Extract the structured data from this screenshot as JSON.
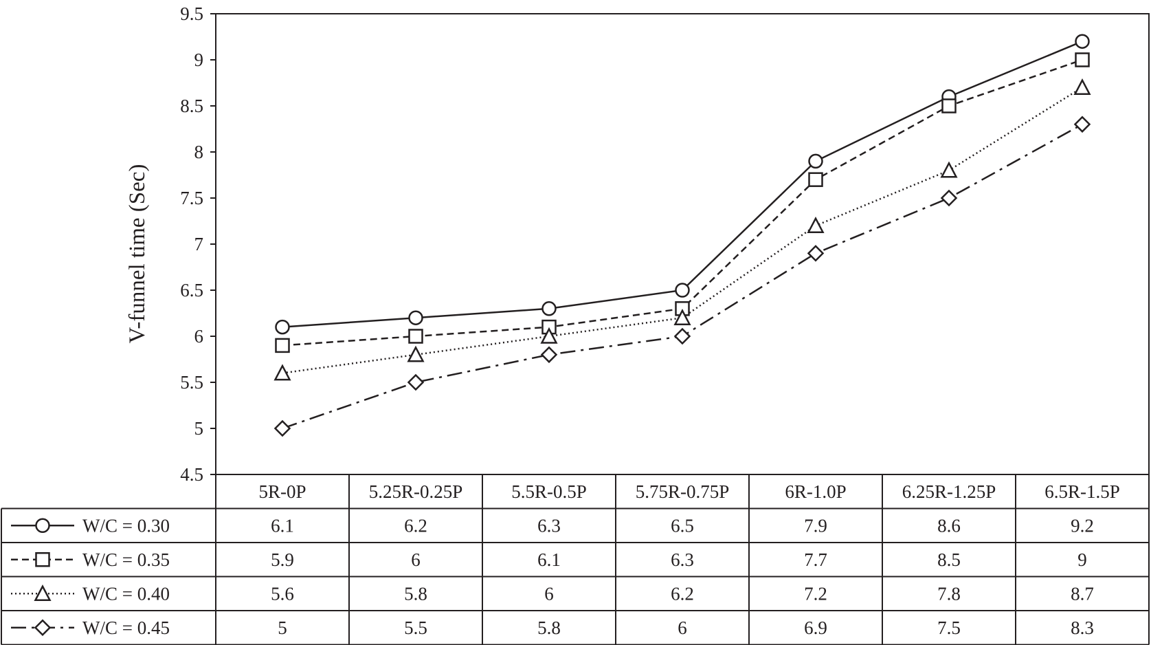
{
  "chart_data": {
    "type": "line",
    "ylabel": "V-funnel time (Sec)",
    "xlabel": "",
    "ylim": [
      4.5,
      9.5
    ],
    "yticks": [
      "4.5",
      "5",
      "5.5",
      "6",
      "6.5",
      "7",
      "7.5",
      "8",
      "8.5",
      "9",
      "9.5"
    ],
    "categories": [
      "5R-0P",
      "5.25R-0.25P",
      "5.5R-0.5P",
      "5.75R-0.75P",
      "6R-1.0P",
      "6.25R-1.25P",
      "6.5R-1.5P"
    ],
    "grid": false,
    "legend_placement": "data-table",
    "series": [
      {
        "name": "W/C = 0.30",
        "marker": "circle",
        "line": "solid",
        "values": [
          6.1,
          6.2,
          6.3,
          6.5,
          7.9,
          8.6,
          9.2
        ],
        "labels": [
          "6.1",
          "6.2",
          "6.3",
          "6.5",
          "7.9",
          "8.6",
          "9.2"
        ]
      },
      {
        "name": "W/C = 0.35",
        "marker": "square",
        "line": "dashed",
        "values": [
          5.9,
          6.0,
          6.1,
          6.3,
          7.7,
          8.5,
          9.0
        ],
        "labels": [
          "5.9",
          "6",
          "6.1",
          "6.3",
          "7.7",
          "8.5",
          "9"
        ]
      },
      {
        "name": "W/C = 0.40",
        "marker": "triangle",
        "line": "dotted",
        "values": [
          5.6,
          5.8,
          6.0,
          6.2,
          7.2,
          7.8,
          8.7
        ],
        "labels": [
          "5.6",
          "5.8",
          "6",
          "6.2",
          "7.2",
          "7.8",
          "8.7"
        ]
      },
      {
        "name": "W/C = 0.45",
        "marker": "diamond",
        "line": "dash-dot",
        "values": [
          5.0,
          5.5,
          5.8,
          6.0,
          6.9,
          7.5,
          8.3
        ],
        "labels": [
          "5",
          "5.5",
          "5.8",
          "6",
          "6.9",
          "7.5",
          "8.3"
        ]
      }
    ],
    "colors": {
      "ink": "#231f20",
      "background": "#ffffff"
    }
  }
}
